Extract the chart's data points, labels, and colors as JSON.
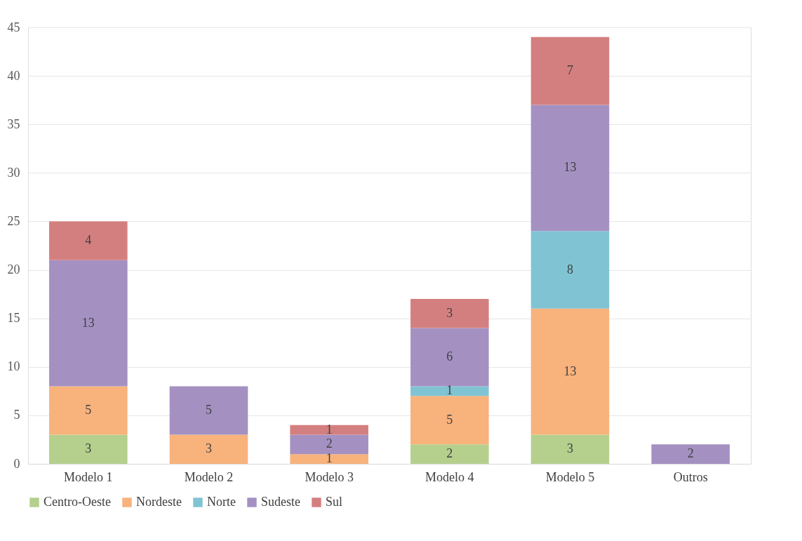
{
  "chart_data": {
    "type": "bar",
    "stacked": true,
    "categories": [
      "Modelo 1",
      "Modelo 2",
      "Modelo 3",
      "Modelo 4",
      "Modelo 5",
      "Outros"
    ],
    "series": [
      {
        "name": "Centro-Oeste",
        "color": "#b5cf8d",
        "values": [
          3,
          null,
          null,
          2,
          3,
          null
        ]
      },
      {
        "name": "Nordeste",
        "color": "#f8b27c",
        "values": [
          5,
          3,
          1,
          5,
          13,
          null
        ]
      },
      {
        "name": "Norte",
        "color": "#80c4d4",
        "values": [
          null,
          null,
          null,
          1,
          8,
          null
        ]
      },
      {
        "name": "Sudeste",
        "color": "#a491c2",
        "values": [
          13,
          5,
          2,
          6,
          13,
          2
        ]
      },
      {
        "name": "Sul",
        "color": "#d47f7f",
        "values": [
          4,
          null,
          1,
          3,
          7,
          null
        ]
      }
    ],
    "ylim": [
      0,
      45
    ],
    "yticks": [
      0,
      5,
      10,
      15,
      20,
      25,
      30,
      35,
      40,
      45
    ],
    "grid": "y",
    "legend": "bottom",
    "data_labels": true
  }
}
